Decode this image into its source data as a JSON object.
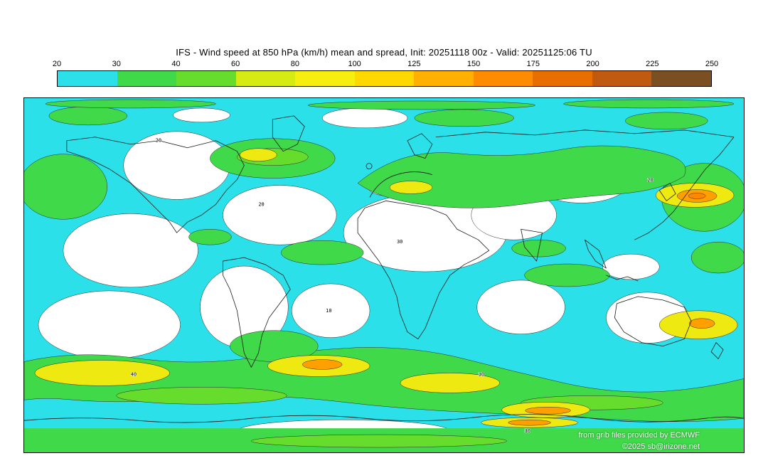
{
  "header": {
    "title": "IFS - Wind speed at 850 hPa (km/h) mean and spread, Init: 20251118 00z - Valid: 20251125:06 TU"
  },
  "chart_data": {
    "type": "heatmap",
    "title": "IFS - Wind speed at 850 hPa (km/h) mean and spread",
    "model": "IFS",
    "variable": "Wind speed",
    "level": "850 hPa",
    "units": "km/h",
    "statistic": "mean and spread",
    "init": "20251118 00z",
    "valid": "20251125:06 TU",
    "value_range": [
      20,
      250
    ],
    "legend_position": "top",
    "projection": "equirectangular world map",
    "colorbar": {
      "tick_labels": [
        "20",
        "30",
        "40",
        "60",
        "80",
        "100",
        "125",
        "150",
        "175",
        "200",
        "225",
        "250"
      ],
      "colors": [
        "#2BE0E8",
        "#3FD94A",
        "#66DC2C",
        "#D6EA14",
        "#F5EE0E",
        "#FFD800",
        "#FFB000",
        "#FF8C00",
        "#E86E00",
        "#C05A10",
        "#7A5022"
      ]
    },
    "map_palette": {
      "calm": "#FFFFFF",
      "cyan_20": "#2BE0E8",
      "green_30": "#3FD94A",
      "green_40": "#66DC2C",
      "yellow_60": "#EFE912",
      "yellow_80": "#FFDD00",
      "orange_100": "#FFA000",
      "orange_125": "#FF8800",
      "coast": "#1A1A1A"
    },
    "summary": "Filled isotach map: calm (<20 km/h, white) over subtropical highs and continental interiors; 20-30 km/h (cyan) over most oceans and polar latitudes; 30-60 km/h (greens) in the NH and SH storm tracks and Antarctic coastal band; 60-100 km/h (yellow) cores in the Southern Ocean and East Asian jet; >100 km/h (orange) jet maxima."
  },
  "map": {
    "contour_labels": [
      {
        "text": "20"
      },
      {
        "text": "20"
      },
      {
        "text": "30"
      },
      {
        "text": "30"
      },
      {
        "text": "40"
      },
      {
        "text": "20"
      },
      {
        "text": "10"
      },
      {
        "text": "30"
      }
    ]
  },
  "footer": {
    "credit": "from grib files provided by ECMWF",
    "copyright": "©2025 sb@irizone.net"
  }
}
